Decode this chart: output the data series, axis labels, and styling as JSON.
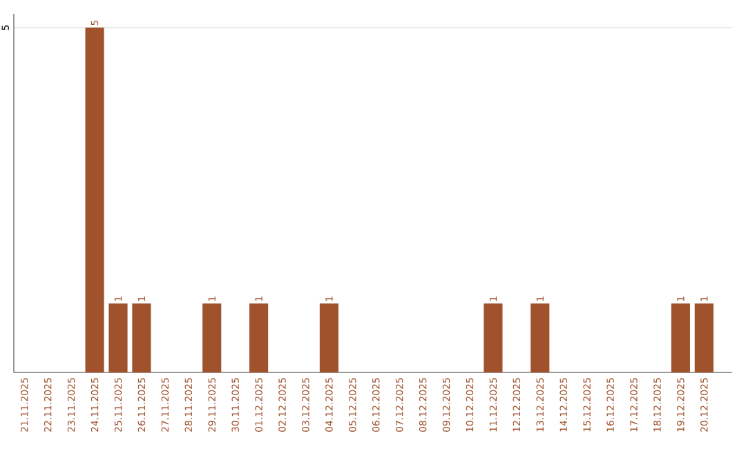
{
  "chart_data": {
    "type": "bar",
    "categories": [
      "21.11.2025",
      "22.11.2025",
      "23.11.2025",
      "24.11.2025",
      "25.11.2025",
      "26.11.2025",
      "27.11.2025",
      "28.11.2025",
      "29.11.2025",
      "30.11.2025",
      "01.12.2025",
      "02.12.2025",
      "03.12.2025",
      "04.12.2025",
      "05.12.2025",
      "06.12.2025",
      "07.12.2025",
      "08.12.2025",
      "09.12.2025",
      "10.12.2025",
      "11.12.2025",
      "12.12.2025",
      "13.12.2025",
      "14.12.2025",
      "15.12.2025",
      "16.12.2025",
      "17.12.2025",
      "18.12.2025",
      "19.12.2025",
      "20.12.2025"
    ],
    "values": [
      0,
      0,
      0,
      5,
      1,
      1,
      0,
      0,
      1,
      0,
      1,
      0,
      0,
      1,
      0,
      0,
      0,
      0,
      0,
      0,
      1,
      0,
      1,
      0,
      0,
      0,
      0,
      0,
      1,
      1
    ],
    "value_labels": [
      null,
      null,
      null,
      "5",
      "1",
      "1",
      null,
      null,
      "1",
      null,
      "1",
      null,
      null,
      "1",
      null,
      null,
      null,
      null,
      null,
      null,
      "1",
      null,
      "1",
      null,
      null,
      null,
      null,
      null,
      "1",
      "1"
    ],
    "color": "#a0522d",
    "ylim": [
      0,
      5.2
    ],
    "yticks": [
      5
    ],
    "grid": "y"
  }
}
